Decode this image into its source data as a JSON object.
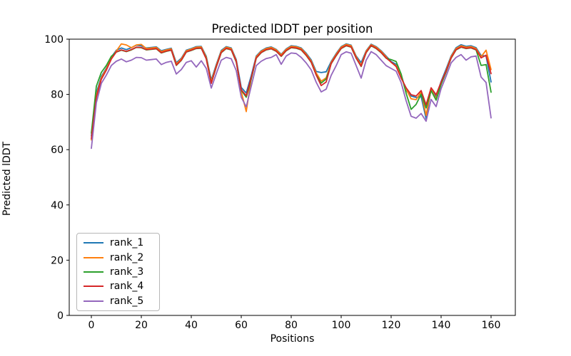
{
  "figure": {
    "background": "#ffffff",
    "axes_edge_color": "#000000"
  },
  "chart_data": {
    "type": "line",
    "title": "Predicted lDDT per position",
    "xlabel": "Positions",
    "ylabel": "Predicted lDDT",
    "ylim": [
      0,
      100
    ],
    "xlim": [
      -8,
      170
    ],
    "grid": false,
    "legend_position": "lower left",
    "xticks": [
      0,
      20,
      40,
      60,
      80,
      100,
      120,
      140,
      160
    ],
    "yticks": [
      0,
      20,
      40,
      60,
      80,
      100
    ],
    "x": [
      0,
      2,
      4,
      6,
      8,
      10,
      12,
      14,
      16,
      18,
      20,
      22,
      24,
      26,
      28,
      30,
      32,
      34,
      36,
      38,
      40,
      42,
      44,
      46,
      48,
      50,
      52,
      54,
      56,
      58,
      60,
      62,
      64,
      66,
      68,
      70,
      72,
      74,
      76,
      78,
      80,
      82,
      84,
      86,
      88,
      90,
      92,
      94,
      96,
      98,
      100,
      102,
      104,
      106,
      108,
      110,
      112,
      114,
      116,
      118,
      120,
      122,
      124,
      126,
      128,
      130,
      132,
      134,
      136,
      138,
      140,
      142,
      144,
      146,
      148,
      150,
      152,
      154,
      156,
      158,
      160
    ],
    "series": [
      {
        "name": "rank_1",
        "color": "#1f77b4",
        "values": [
          65,
          80.5,
          86.5,
          89.5,
          93.5,
          96,
          96.8,
          96.2,
          96.9,
          97.8,
          97.6,
          96.8,
          97,
          97.2,
          95.8,
          96.3,
          96.7,
          91.5,
          93.1,
          96,
          96.6,
          97.3,
          97.4,
          93.8,
          85.2,
          90.8,
          95.9,
          97.3,
          96.8,
          92.6,
          82.5,
          80.5,
          86.8,
          93.9,
          95.8,
          96.8,
          97.2,
          96.3,
          94.5,
          96.5,
          97.6,
          97.4,
          96.8,
          94.9,
          92.5,
          88.3,
          87.9,
          88.2,
          91.9,
          94.8,
          97.3,
          98.3,
          97.8,
          93.9,
          91.5,
          95.8,
          98.2,
          97.3,
          95.8,
          93.9,
          91.9,
          90.9,
          86.9,
          81.4,
          79.4,
          78.9,
          79.2,
          71.2,
          82.2,
          79.2,
          84.7,
          89.2,
          93.9,
          96.9,
          98,
          97.4,
          97.6,
          96.9,
          94.1,
          93.9,
          84.5
        ]
      },
      {
        "name": "rank_2",
        "color": "#ff7f0e",
        "values": [
          63.5,
          79.5,
          86,
          89.2,
          93.2,
          95.7,
          98.3,
          97.9,
          96.9,
          97.9,
          98.1,
          96.6,
          96.8,
          97,
          95.5,
          96.1,
          96.5,
          91,
          92.8,
          95.8,
          96.4,
          97.1,
          97.2,
          93.4,
          84.6,
          90.4,
          95.6,
          97.1,
          96.6,
          92.2,
          81,
          73.8,
          85.8,
          93.6,
          95.6,
          96.6,
          97,
          96.1,
          94.3,
          96.3,
          97.4,
          97.2,
          96.6,
          94.6,
          92.1,
          87.8,
          84.8,
          86,
          91.6,
          94.5,
          97.1,
          98.1,
          97.6,
          93.6,
          90.6,
          95.6,
          98,
          97.1,
          95.6,
          93.6,
          91.6,
          90.4,
          86.4,
          81.9,
          78.4,
          78.1,
          80.9,
          72.4,
          81.9,
          78.4,
          84.1,
          88.6,
          93.6,
          96.6,
          97.6,
          97.1,
          97.3,
          96.6,
          93.6,
          96,
          89
        ]
      },
      {
        "name": "rank_3",
        "color": "#2ca02c",
        "values": [
          66,
          83,
          88,
          90.5,
          93.8,
          95.3,
          96,
          95.5,
          96.1,
          97,
          96.9,
          96.1,
          96.3,
          96.5,
          95,
          95.6,
          96,
          90.5,
          92.3,
          95.3,
          95.9,
          96.6,
          96.7,
          93,
          84.1,
          89.9,
          95.1,
          96.6,
          96.1,
          91.7,
          81.5,
          79,
          85.5,
          93.1,
          95.1,
          96.1,
          96.5,
          95.6,
          93.8,
          95.8,
          96.9,
          96.7,
          96.1,
          94.1,
          91.6,
          87.1,
          84.1,
          85.6,
          91.1,
          94,
          96.6,
          97.6,
          97.1,
          93.1,
          90.1,
          95.1,
          97.6,
          96.6,
          95.1,
          93.1,
          92.6,
          91.9,
          87.4,
          80.4,
          74.6,
          76.4,
          80.1,
          75.1,
          81.4,
          77.9,
          83.6,
          88.1,
          93.1,
          96.1,
          97.1,
          96.6,
          96.8,
          96.1,
          90.5,
          90.8,
          80.8
        ]
      },
      {
        "name": "rank_4",
        "color": "#d62728",
        "values": [
          64,
          79,
          85.5,
          88.8,
          92.8,
          95.4,
          96.1,
          95.6,
          96.2,
          97.1,
          97,
          96.2,
          96.4,
          96.6,
          95.1,
          95.7,
          96.1,
          90.6,
          92.4,
          95.4,
          96,
          96.7,
          96.8,
          92.8,
          84,
          90,
          95.2,
          96.7,
          96.2,
          91.9,
          81.7,
          79.5,
          86,
          93.2,
          95.2,
          96.2,
          96.6,
          95.7,
          93.9,
          95.9,
          97,
          96.8,
          96.2,
          94.2,
          91.7,
          87,
          83.2,
          84.5,
          91.2,
          94.1,
          96.7,
          97.7,
          97.2,
          93.2,
          90.2,
          95.2,
          97.7,
          96.7,
          95.2,
          93.2,
          91.7,
          90.1,
          85.9,
          82.4,
          79.9,
          79.4,
          81.4,
          76.2,
          82.4,
          79.9,
          84.4,
          88.4,
          93.2,
          96.2,
          97.2,
          96.7,
          96.9,
          96.2,
          93.2,
          94.2,
          87.5
        ]
      },
      {
        "name": "rank_5",
        "color": "#9467bd",
        "values": [
          60.5,
          77,
          84,
          87,
          90.5,
          92,
          92.8,
          91.8,
          92.4,
          93.4,
          93.3,
          92.4,
          92.6,
          92.8,
          90.8,
          91.6,
          92,
          87.4,
          89,
          91.6,
          92.2,
          89.9,
          92.2,
          89.4,
          82.3,
          87.5,
          92.4,
          93.4,
          92.9,
          88.6,
          79,
          75.5,
          83,
          90.4,
          92,
          93,
          93.4,
          94.4,
          90.9,
          93.9,
          95,
          94.8,
          93.4,
          91.4,
          88.9,
          84.4,
          80.9,
          81.9,
          86.9,
          90.4,
          94.4,
          95.4,
          94.9,
          90.4,
          85.9,
          92.4,
          95.5,
          94.4,
          92.4,
          90.4,
          89.4,
          88.4,
          84.3,
          77.7,
          72.1,
          71.4,
          73.1,
          70.3,
          78.2,
          75.6,
          82.1,
          86.6,
          91.4,
          93.4,
          94.4,
          92.4,
          93.6,
          93.9,
          86.3,
          84.3,
          71.5
        ]
      }
    ]
  }
}
